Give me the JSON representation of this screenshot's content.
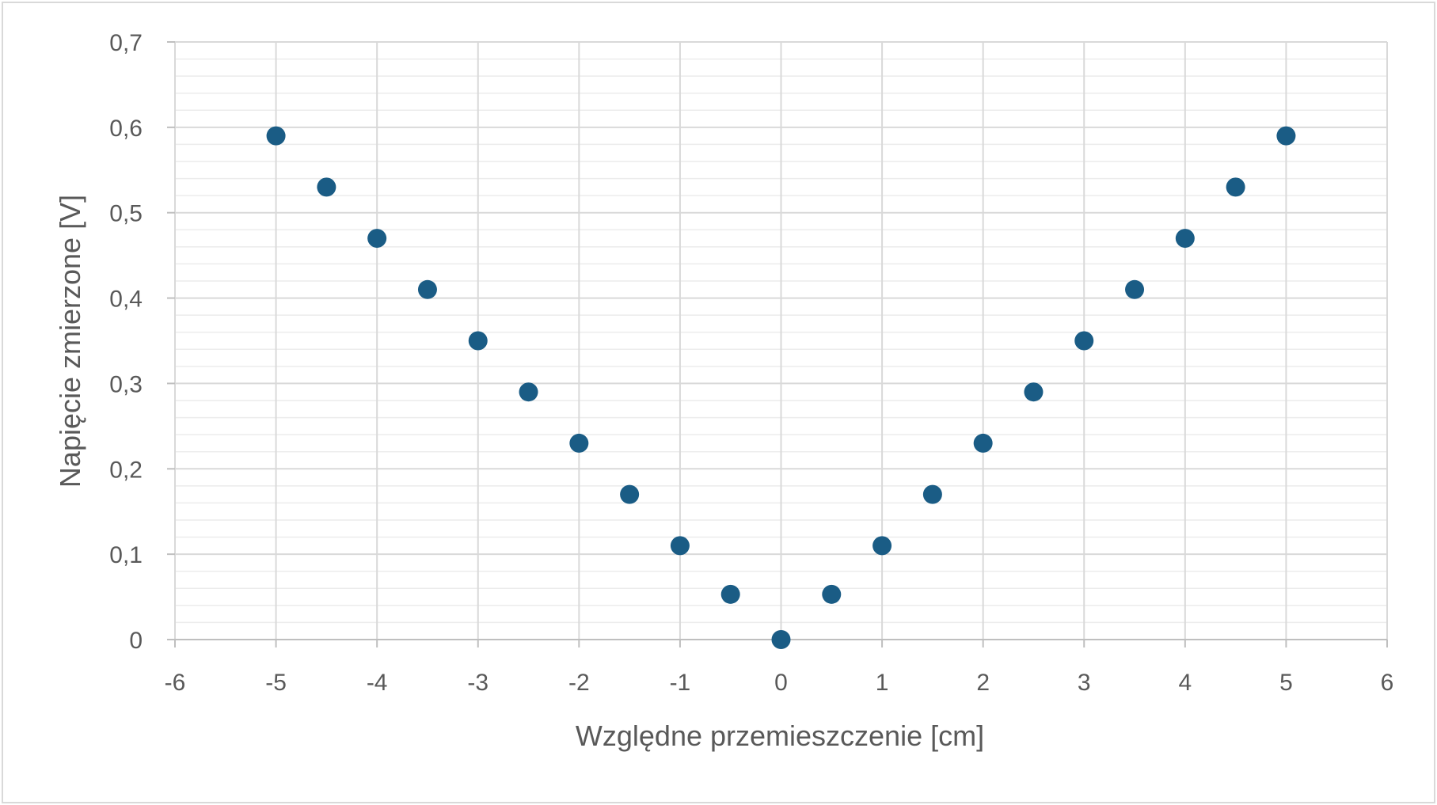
{
  "chart_data": {
    "type": "scatter",
    "title": "",
    "xlabel": "Względne przemieszczenie [cm]",
    "ylabel": "Napięcie zmierzone [V]",
    "xlim": [
      -6,
      6
    ],
    "ylim": [
      0,
      0.7
    ],
    "x_ticks": [
      -6,
      -5,
      -4,
      -3,
      -2,
      -1,
      0,
      1,
      2,
      3,
      4,
      5,
      6
    ],
    "x_tick_labels": [
      "-6",
      "-5",
      "-4",
      "-3",
      "-2",
      "-1",
      "0",
      "1",
      "2",
      "3",
      "4",
      "5",
      "6"
    ],
    "y_ticks": [
      0,
      0.1,
      0.2,
      0.3,
      0.4,
      0.5,
      0.6,
      0.7
    ],
    "y_tick_labels": [
      "0",
      "0,1",
      "0,2",
      "0,3",
      "0,4",
      "0,5",
      "0,6",
      "0,7"
    ],
    "grid": true,
    "minor_grid": true,
    "marker_color": "#1a5c85",
    "gridline_color": "#d9d9d9",
    "minor_gridline_color": "#ececec",
    "text_color": "#595959",
    "series": [
      {
        "x": [
          -5,
          -4.5,
          -4,
          -3.5,
          -3,
          -2.5,
          -2,
          -1.5,
          -1,
          -0.5,
          0,
          0.5,
          1,
          1.5,
          2,
          2.5,
          3,
          3.5,
          4,
          4.5,
          5
        ],
        "y": [
          0.59,
          0.53,
          0.47,
          0.41,
          0.35,
          0.29,
          0.23,
          0.17,
          0.11,
          0.053,
          0,
          0.053,
          0.11,
          0.17,
          0.23,
          0.29,
          0.35,
          0.41,
          0.47,
          0.53,
          0.59
        ]
      }
    ]
  }
}
